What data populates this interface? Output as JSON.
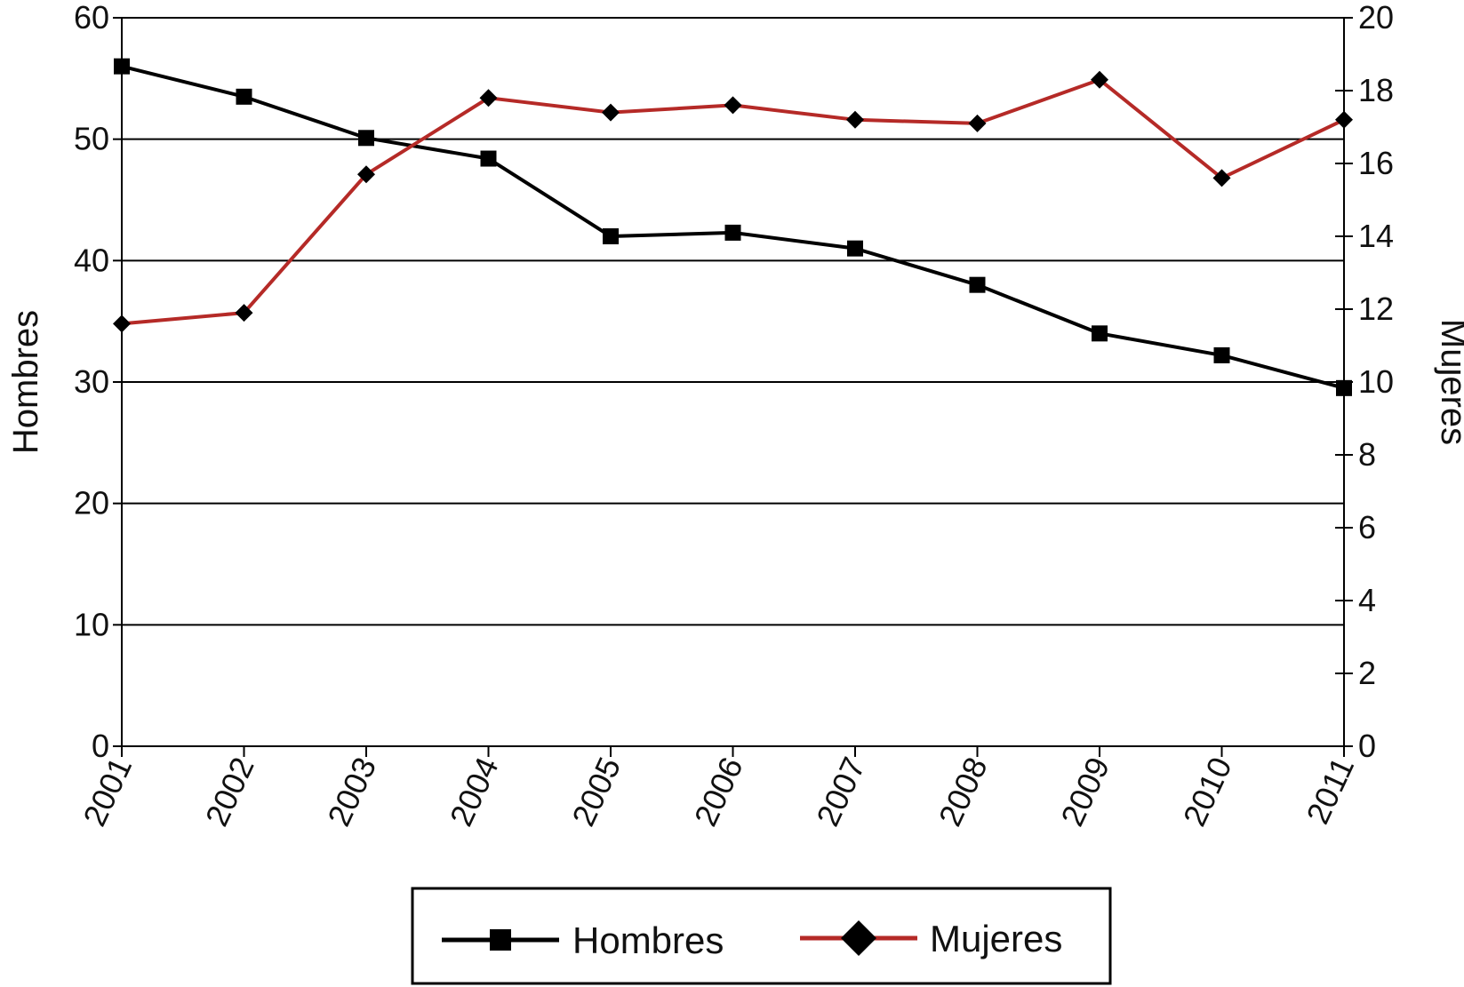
{
  "chart_data": {
    "type": "line",
    "x": [
      "2001",
      "2002",
      "2003",
      "2004",
      "2005",
      "2006",
      "2007",
      "2008",
      "2009",
      "2010",
      "2011"
    ],
    "series": [
      {
        "name": "Hombres",
        "axis": "left",
        "color": "#000000",
        "marker": "square",
        "values": [
          56,
          53.5,
          50.1,
          48.4,
          42,
          42.3,
          41,
          38,
          34,
          32.2,
          29.5
        ]
      },
      {
        "name": "Mujeres",
        "axis": "right",
        "color": "#b52a27",
        "marker": "diamond",
        "values": [
          11.6,
          11.9,
          15.7,
          17.8,
          17.4,
          17.6,
          17.2,
          17.1,
          18.3,
          15.6,
          17.2
        ]
      }
    ],
    "ylabel_left": "Hombres",
    "ylabel_right": "Mujeres",
    "ylim_left": [
      0,
      60
    ],
    "ylim_right": [
      0,
      20
    ],
    "yticks_left": [
      "0",
      "10",
      "20",
      "30",
      "40",
      "50",
      "60"
    ],
    "yticks_right": [
      "0",
      "2",
      "4",
      "6",
      "8",
      "10",
      "12",
      "14",
      "16",
      "18",
      "20"
    ],
    "grid": "horizontal",
    "legend": "bottom"
  }
}
